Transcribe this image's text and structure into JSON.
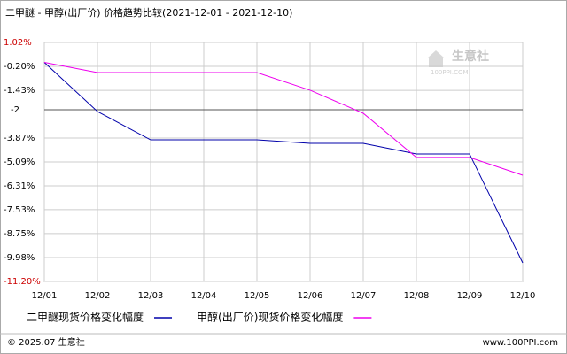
{
  "chart_data": {
    "type": "line",
    "title": "二甲醚 - 甲醇(出厂价) 价格趋势比较(2021-12-01 - 2021-12-10)",
    "xticks": [
      "12/01",
      "12/02",
      "12/03",
      "12/04",
      "12/05",
      "12/06",
      "12/07",
      "12/08",
      "12/09",
      "12/10"
    ],
    "x": [
      "12/01",
      "12/02",
      "12/03",
      "12/05",
      "12/06",
      "12/07",
      "12/08",
      "12/09",
      "12/10"
    ],
    "series": [
      {
        "name": "二甲醚现货价格变化幅度",
        "color": "#0000aa",
        "values": [
          0,
          -2.51,
          -3.96,
          -3.96,
          -4.14,
          -4.14,
          -4.68,
          -4.68,
          -10.25
        ]
      },
      {
        "name": "甲醇(出厂价)现货价格变化幅度",
        "color": "#ee00ee",
        "values": [
          0,
          -0.52,
          -0.52,
          -0.52,
          -1.42,
          -2.6,
          -4.86,
          -4.86,
          -5.77
        ]
      }
    ],
    "ylim": [
      -11.2,
      1.02
    ],
    "yticks": [
      {
        "value": 1.02,
        "label": "1.02%"
      },
      {
        "value": -0.2,
        "label": "-0.20%"
      },
      {
        "value": -1.43,
        "label": "-1.43%"
      },
      {
        "value": -2.42,
        "label": "-2"
      },
      {
        "value": -3.87,
        "label": "-3.87%"
      },
      {
        "value": -5.09,
        "label": "-5.09%"
      },
      {
        "value": -6.31,
        "label": "-6.31%"
      },
      {
        "value": -7.53,
        "label": "-7.53%"
      },
      {
        "value": -8.75,
        "label": "-8.75%"
      },
      {
        "value": -9.98,
        "label": "-9.98%"
      },
      {
        "value": -11.2,
        "label": "-11.20%"
      }
    ],
    "grid": true,
    "watermark": {
      "name": "生意社",
      "site": "100PPI.COM"
    },
    "footer": {
      "left": "© 2025.07 生意社",
      "right": "www.100PPI.com"
    }
  }
}
